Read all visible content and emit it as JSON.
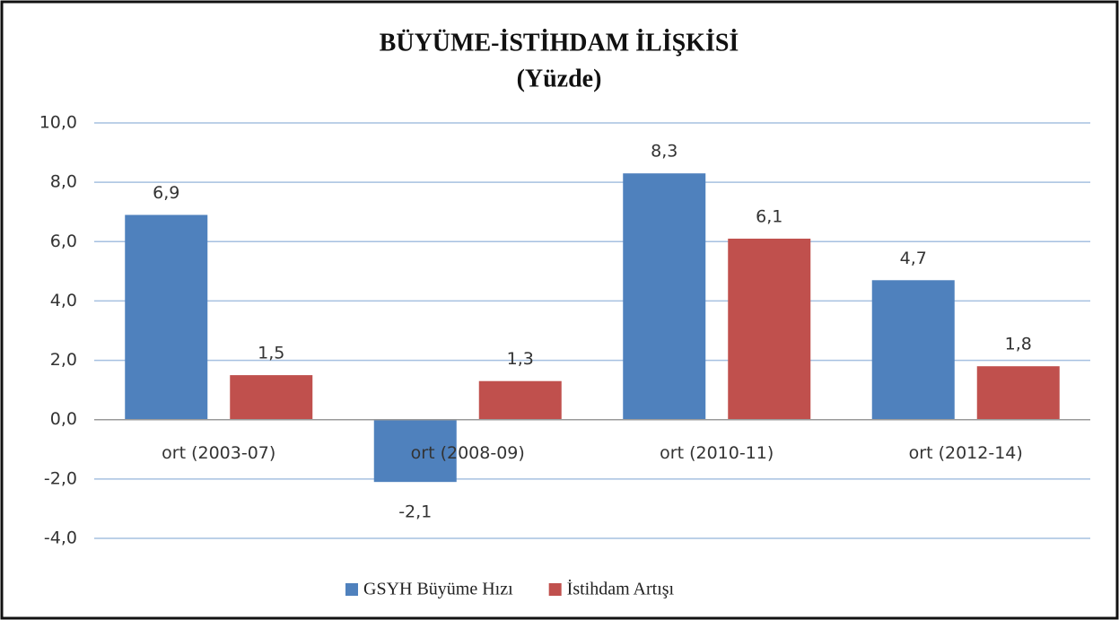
{
  "chart_data": {
    "type": "bar",
    "title": "BÜYÜME-İSTİHDAM İLİŞKİSİ",
    "subtitle": "(Yüzde)",
    "categories": [
      "ort (2003-07)",
      "ort (2008-09)",
      "ort (2010-11)",
      "ort (2012-14)"
    ],
    "series": [
      {
        "name": "GSYH Büyüme Hızı",
        "color": "#4f81bd",
        "values": [
          6.9,
          -2.1,
          8.3,
          4.7
        ],
        "value_labels": [
          "6,9",
          "-2,1",
          "8,3",
          "4,7"
        ]
      },
      {
        "name": "İstihdam Artışı",
        "color": "#c0504d",
        "values": [
          1.5,
          1.3,
          6.1,
          1.8
        ],
        "value_labels": [
          "1,5",
          "1,3",
          "6,1",
          "1,8"
        ]
      }
    ],
    "ylim": [
      -4,
      10
    ],
    "yticks": [
      {
        "value": -4,
        "label": "-4,0"
      },
      {
        "value": -2,
        "label": "-2,0"
      },
      {
        "value": 0,
        "label": "0,0"
      },
      {
        "value": 2,
        "label": "2,0"
      },
      {
        "value": 4,
        "label": "4,0"
      },
      {
        "value": 6,
        "label": "6,0"
      },
      {
        "value": 8,
        "label": "8,0"
      },
      {
        "value": 10,
        "label": "10,0"
      }
    ],
    "grid": true,
    "legend": "bottom"
  }
}
